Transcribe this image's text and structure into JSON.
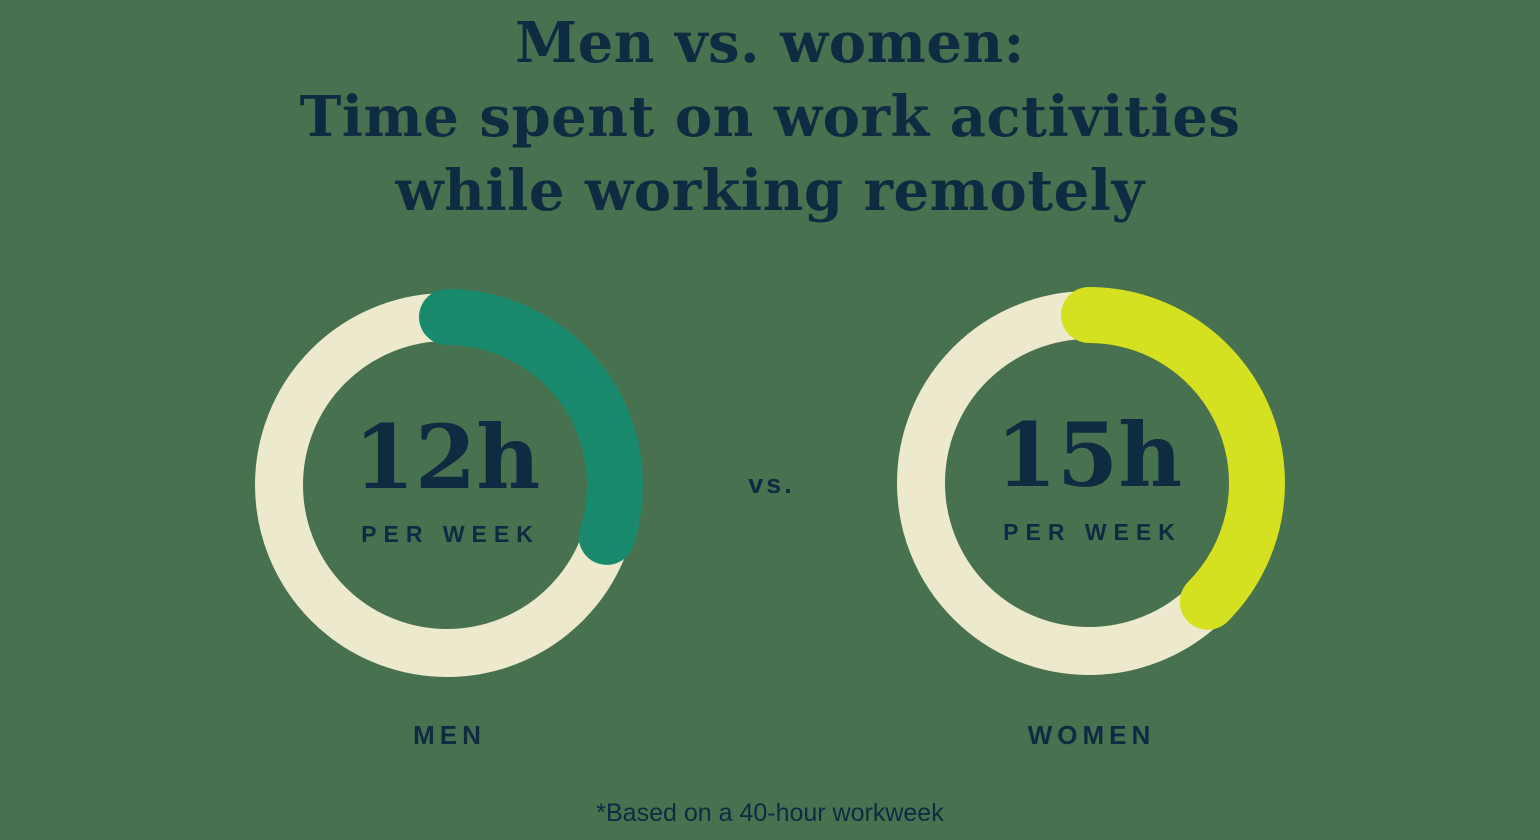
{
  "page": {
    "background_color": "#48714F",
    "text_color": "#0E2B42"
  },
  "title": {
    "line1": "Men vs. women:",
    "line2": "Time spent on work activities",
    "line3": "while working remotely"
  },
  "vs_label": "vs.",
  "footnote": "*Based on a 40-hour workweek",
  "chart_data": {
    "type": "donut-comparison",
    "title": "Men vs. women: Time spent on work activities while working remotely",
    "unit_label": "PER WEEK",
    "basis_hours": 40,
    "note": "*Based on a 40-hour workweek",
    "track_color": "#EDE9CD",
    "series": [
      {
        "name": "MEN",
        "value_hours": 12,
        "display_value": "12h",
        "fraction_of_workweek": 0.3,
        "arc_color": "#1A8A6F"
      },
      {
        "name": "WOMEN",
        "value_hours": 15,
        "display_value": "15h",
        "fraction_of_workweek": 0.375,
        "arc_color": "#D5E021"
      }
    ]
  }
}
